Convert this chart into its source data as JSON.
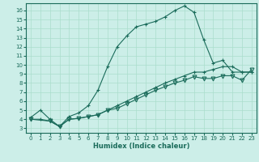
{
  "xlabel": "Humidex (Indice chaleur)",
  "bg_color": "#cceee8",
  "line_color": "#1a6b5a",
  "grid_color": "#aaddcc",
  "xlim": [
    -0.5,
    23.5
  ],
  "ylim": [
    2.5,
    16.8
  ],
  "xticks": [
    0,
    1,
    2,
    3,
    4,
    5,
    6,
    7,
    8,
    9,
    10,
    11,
    12,
    13,
    14,
    15,
    16,
    17,
    18,
    19,
    20,
    21,
    22,
    23
  ],
  "yticks": [
    3,
    4,
    5,
    6,
    7,
    8,
    9,
    10,
    11,
    12,
    13,
    14,
    15,
    16
  ],
  "series": [
    {
      "x": [
        0,
        1,
        2,
        3,
        4,
        5,
        6,
        7,
        8,
        9,
        10,
        11,
        12,
        13,
        14,
        15,
        16,
        17,
        18,
        19,
        20,
        21,
        22,
        23
      ],
      "y": [
        4.2,
        5.0,
        4.0,
        3.2,
        4.3,
        4.7,
        5.5,
        7.2,
        9.8,
        12.0,
        13.2,
        14.2,
        14.5,
        14.8,
        15.3,
        16.0,
        16.5,
        15.8,
        12.8,
        10.2,
        10.5,
        9.2,
        9.2,
        9.2
      ],
      "marker": "+"
    },
    {
      "x": [
        0,
        1,
        2,
        3,
        4,
        5,
        6,
        7,
        8,
        9,
        10,
        11,
        12,
        13,
        14,
        15,
        16,
        17,
        18,
        19,
        20,
        21,
        22,
        23
      ],
      "y": [
        4.0,
        4.0,
        3.8,
        3.2,
        4.0,
        4.1,
        4.3,
        4.5,
        5.0,
        5.5,
        6.0,
        6.5,
        7.0,
        7.5,
        8.0,
        8.4,
        8.8,
        9.2,
        9.2,
        9.5,
        9.8,
        9.8,
        9.2,
        9.2
      ],
      "marker": "+"
    },
    {
      "x": [
        0,
        2,
        3,
        4,
        5,
        6,
        7,
        8,
        9,
        10,
        11,
        12,
        13,
        14,
        15,
        16,
        17,
        18,
        19,
        20,
        21,
        22,
        23
      ],
      "y": [
        4.0,
        3.8,
        3.2,
        4.0,
        4.1,
        4.3,
        4.5,
        5.0,
        5.2,
        5.7,
        6.2,
        6.7,
        7.2,
        7.6,
        8.0,
        8.3,
        8.7,
        8.5,
        8.5,
        8.8,
        8.8,
        8.3,
        9.5
      ],
      "marker": "v"
    }
  ]
}
